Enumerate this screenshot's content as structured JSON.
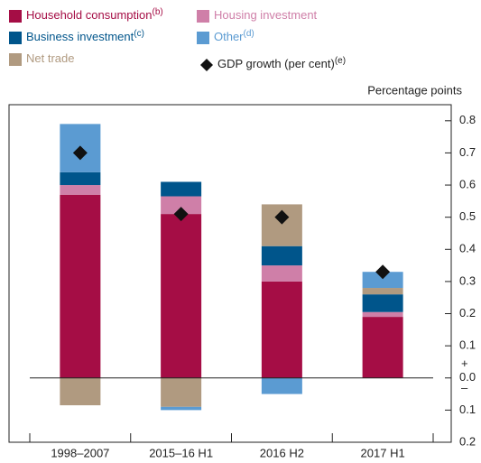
{
  "chart_data": {
    "type": "stacked_bar",
    "axis_label": "Percentage points",
    "categories": [
      "1998–2007",
      "2015–16 H1",
      "2016 H2",
      "2017 H1"
    ],
    "series": [
      {
        "name": "Household consumption",
        "note": "(b)",
        "color": "#a50d45",
        "values": [
          0.57,
          0.51,
          0.3,
          0.19
        ]
      },
      {
        "name": "Housing investment",
        "note": null,
        "color": "#cf7fa8",
        "values": [
          0.03,
          0.055,
          0.05,
          0.015
        ]
      },
      {
        "name": "Business investment",
        "note": "(c)",
        "color": "#00558b",
        "values": [
          0.04,
          0.045,
          0.06,
          0.055
        ]
      },
      {
        "name": "Net trade",
        "note": null,
        "color": "#b09a80",
        "values": [
          -0.085,
          -0.09,
          0.13,
          0.02
        ]
      },
      {
        "name": "Other",
        "note": "(d)",
        "color": "#5b9bd2",
        "values": [
          0.15,
          -0.01,
          -0.05,
          0.05
        ]
      }
    ],
    "gdp_growth": {
      "name": "GDP growth (per cent)",
      "note": "(e)",
      "color": "#111111",
      "values": [
        0.7,
        0.51,
        0.5,
        0.33
      ]
    },
    "ylim": [
      -0.2,
      0.85
    ],
    "yticks": [
      {
        "value": -0.2,
        "label": "0.2"
      },
      {
        "value": -0.1,
        "label": "0.1"
      },
      {
        "value": 0,
        "label": "0.0"
      },
      0.1,
      0.2,
      0.3,
      0.4,
      0.5,
      0.6,
      0.7,
      0.8
    ],
    "positive_sign": "+",
    "negative_sign": "–"
  }
}
